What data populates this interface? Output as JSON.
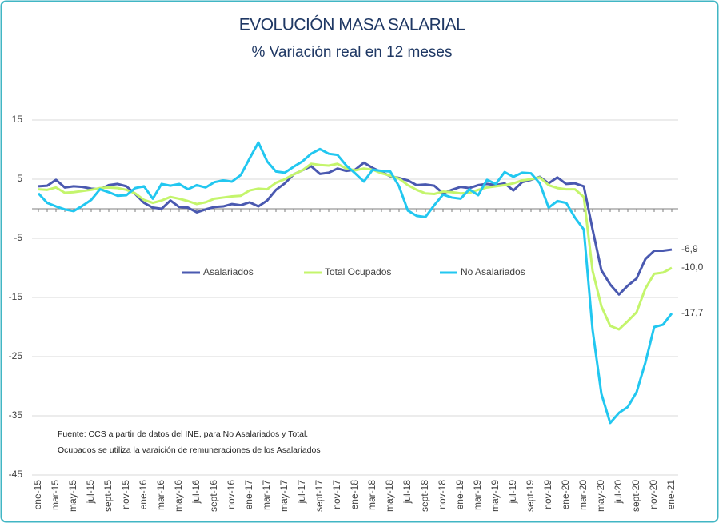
{
  "chart_data": {
    "type": "line",
    "title": "EVOLUCIÓN MASA SALARIAL",
    "subtitle": "% Variación real en 12 meses",
    "note": [
      "Fuente: CCS a partir de datos del INE, para No Asalariados y Total.",
      "Ocupados se utiliza la varaición de remuneraciones de los Asalariados"
    ],
    "categories": [
      "ene-15",
      null,
      "mar-15",
      null,
      "may-15",
      null,
      "jul-15",
      null,
      "sept-15",
      null,
      "nov-15",
      null,
      "ene-16",
      null,
      "mar-16",
      null,
      "may-16",
      null,
      "jul-16",
      null,
      "sept-16",
      null,
      "nov-16",
      null,
      "ene-17",
      null,
      "mar-17",
      null,
      "may-17",
      null,
      "jul-17",
      null,
      "sept-17",
      null,
      "nov-17",
      null,
      "ene-18",
      null,
      "mar-18",
      null,
      "may-18",
      null,
      "jul-18",
      null,
      "sept-18",
      null,
      "nov-18",
      null,
      "ene-19",
      null,
      "mar-19",
      null,
      "may-19",
      null,
      "jul-19",
      null,
      "sept-19",
      null,
      "nov-19",
      null,
      "ene-20",
      null,
      "mar-20",
      null,
      "may-20",
      null,
      "jul-20",
      null,
      "sept-20",
      null,
      "nov-20",
      null,
      "ene-21"
    ],
    "series": [
      {
        "name": "Asalariados",
        "color": "#4a59b0",
        "values": [
          3.8,
          3.9,
          4.9,
          3.6,
          3.8,
          3.7,
          3.4,
          3.3,
          4.0,
          4.2,
          3.8,
          2.5,
          1.0,
          0.2,
          0.0,
          1.4,
          0.3,
          0.2,
          -0.6,
          -0.1,
          0.3,
          0.4,
          0.8,
          0.6,
          1.1,
          0.4,
          1.4,
          3.2,
          4.3,
          5.8,
          6.5,
          7.2,
          5.9,
          6.1,
          6.8,
          6.4,
          6.6,
          7.8,
          6.9,
          6.2,
          5.5,
          5.2,
          4.8,
          4.0,
          4.1,
          3.9,
          2.6,
          3.2,
          3.7,
          3.5,
          4.0,
          4.2,
          4.0,
          4.3,
          3.1,
          4.5,
          4.9,
          5.4,
          4.3,
          5.3,
          4.2,
          4.3,
          3.8,
          -3.5,
          -10.4,
          -12.8,
          -14.5,
          -13.0,
          -11.8,
          -8.5,
          -7.1,
          -7.1,
          -6.9
        ],
        "value_labels": [
          null,
          null,
          null,
          null,
          null,
          null,
          null,
          null,
          null,
          null,
          null,
          null,
          null,
          null,
          null,
          null,
          null,
          null,
          null,
          null,
          null,
          null,
          null,
          null,
          null,
          null,
          null,
          null,
          null,
          null,
          null,
          null,
          null,
          null,
          null,
          null,
          null,
          null,
          null,
          null,
          null,
          null,
          null,
          null,
          null,
          null,
          null,
          null,
          null,
          null,
          null,
          null,
          null,
          null,
          null,
          null,
          null,
          null,
          null,
          null,
          null,
          null,
          null,
          null,
          null,
          null,
          null,
          null,
          null,
          null,
          null,
          null,
          "-6,9"
        ]
      },
      {
        "name": "Total Ocupados",
        "color": "#c4f56c",
        "values": [
          3.3,
          3.2,
          3.6,
          2.7,
          2.8,
          3.0,
          3.2,
          3.5,
          3.6,
          3.5,
          3.2,
          2.6,
          1.5,
          1.0,
          1.4,
          2.0,
          1.7,
          1.3,
          0.8,
          1.1,
          1.7,
          1.9,
          2.1,
          2.2,
          3.1,
          3.4,
          3.3,
          4.4,
          5.0,
          5.8,
          6.5,
          7.6,
          7.4,
          7.3,
          7.6,
          6.8,
          6.5,
          6.8,
          6.6,
          6.0,
          5.6,
          5.1,
          4.0,
          3.2,
          2.6,
          2.5,
          2.9,
          2.8,
          2.6,
          2.7,
          3.2,
          3.6,
          3.8,
          4.0,
          4.3,
          4.8,
          5.0,
          5.3,
          4.0,
          3.5,
          3.3,
          3.3,
          2.0,
          -10.5,
          -16.5,
          -19.8,
          -20.4,
          -19.0,
          -17.5,
          -13.5,
          -11.0,
          -10.8,
          -10.0
        ],
        "value_labels": [
          null,
          null,
          null,
          null,
          null,
          null,
          null,
          null,
          null,
          null,
          null,
          null,
          null,
          null,
          null,
          null,
          null,
          null,
          null,
          null,
          null,
          null,
          null,
          null,
          null,
          null,
          null,
          null,
          null,
          null,
          null,
          null,
          null,
          null,
          null,
          null,
          null,
          null,
          null,
          null,
          null,
          null,
          null,
          null,
          null,
          null,
          null,
          null,
          null,
          null,
          null,
          null,
          null,
          null,
          null,
          null,
          null,
          null,
          null,
          null,
          null,
          null,
          null,
          null,
          null,
          null,
          null,
          null,
          null,
          null,
          null,
          null,
          "-10,0"
        ]
      },
      {
        "name": "No Asalariados",
        "color": "#22c7f0",
        "values": [
          2.6,
          1.0,
          0.4,
          -0.1,
          -0.4,
          0.5,
          1.5,
          3.3,
          2.8,
          2.2,
          2.3,
          3.5,
          3.8,
          1.7,
          4.2,
          3.9,
          4.2,
          3.3,
          4.0,
          3.6,
          4.5,
          4.8,
          4.6,
          5.7,
          8.5,
          11.2,
          8.0,
          6.3,
          6.1,
          7.1,
          8.0,
          9.3,
          10.1,
          9.3,
          9.1,
          7.3,
          6.0,
          4.6,
          6.6,
          6.4,
          6.3,
          3.8,
          -0.3,
          -1.2,
          -1.4,
          0.6,
          2.4,
          1.9,
          1.7,
          3.3,
          2.3,
          4.9,
          4.2,
          6.2,
          5.4,
          6.1,
          6.0,
          4.3,
          0.2,
          1.3,
          1.0,
          -1.5,
          -3.5,
          -20.5,
          -31.3,
          -36.2,
          -34.5,
          -33.5,
          -31.0,
          -26.0,
          -20.0,
          -19.6,
          -17.7
        ],
        "value_labels": [
          null,
          null,
          null,
          null,
          null,
          null,
          null,
          null,
          null,
          null,
          null,
          null,
          null,
          null,
          null,
          null,
          null,
          null,
          null,
          null,
          null,
          null,
          null,
          null,
          null,
          null,
          null,
          null,
          null,
          null,
          null,
          null,
          null,
          null,
          null,
          null,
          null,
          null,
          null,
          null,
          null,
          null,
          null,
          null,
          null,
          null,
          null,
          null,
          null,
          null,
          null,
          null,
          null,
          null,
          null,
          null,
          null,
          null,
          null,
          null,
          null,
          null,
          null,
          null,
          null,
          null,
          null,
          null,
          null,
          null,
          null,
          null,
          "-17,7"
        ]
      }
    ],
    "ylim": [
      -45,
      15
    ],
    "yticks": [
      15,
      5,
      -5,
      -15,
      -25,
      -35,
      -45
    ],
    "grid": true
  }
}
